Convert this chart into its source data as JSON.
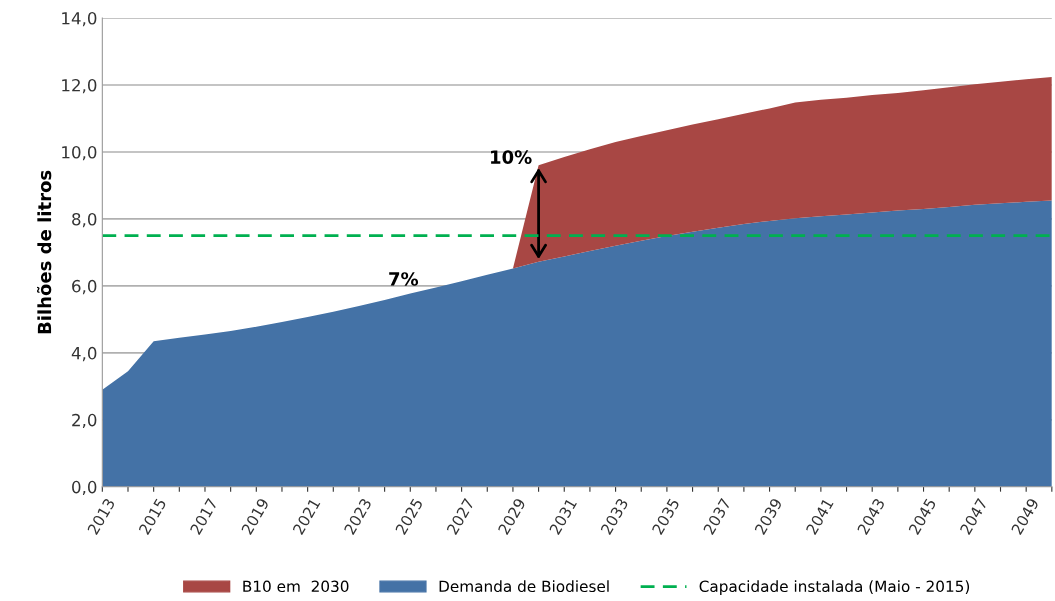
{
  "chart_data": {
    "type": "area",
    "stacked": true,
    "ylabel": "Bilhões de litros",
    "x": [
      2013,
      2014,
      2015,
      2016,
      2017,
      2018,
      2019,
      2020,
      2021,
      2022,
      2023,
      2024,
      2025,
      2026,
      2027,
      2028,
      2029,
      2030,
      2031,
      2032,
      2033,
      2034,
      2035,
      2036,
      2037,
      2038,
      2039,
      2040,
      2041,
      2042,
      2043,
      2044,
      2045,
      2046,
      2047,
      2048,
      2049,
      2050
    ],
    "series": [
      {
        "name": "Demanda de Biodiesel",
        "color": "#4472a6",
        "values": [
          2.9,
          3.45,
          4.35,
          4.45,
          4.55,
          4.65,
          4.78,
          4.92,
          5.07,
          5.23,
          5.4,
          5.58,
          5.77,
          5.95,
          6.14,
          6.33,
          6.52,
          6.72,
          6.88,
          7.04,
          7.2,
          7.35,
          7.49,
          7.62,
          7.74,
          7.85,
          7.94,
          8.02,
          8.08,
          8.13,
          8.19,
          8.25,
          8.3,
          8.36,
          8.42,
          8.47,
          8.51,
          8.55
        ]
      },
      {
        "name": "B10 em  2030",
        "color": "#a84744",
        "values": [
          null,
          null,
          null,
          null,
          null,
          null,
          null,
          null,
          null,
          null,
          null,
          null,
          null,
          null,
          null,
          null,
          0,
          2.88,
          2.97,
          3.04,
          3.1,
          3.13,
          3.16,
          3.2,
          3.24,
          3.29,
          3.36,
          3.46,
          3.48,
          3.49,
          3.51,
          3.51,
          3.54,
          3.57,
          3.6,
          3.63,
          3.66,
          3.69
        ]
      }
    ],
    "ref_lines": [
      {
        "axis": "y",
        "value": 7.5,
        "label": "Capacidade instalada (Maio - 2015)",
        "color": "#00b050",
        "line_style": "dashed"
      }
    ],
    "annotations": [
      "10%",
      "7%"
    ],
    "xlim": [
      2013,
      2050
    ],
    "xticks": [
      2013,
      {
        "value": 2014,
        "label": null
      },
      2015,
      {
        "value": 2016,
        "label": null
      },
      2017,
      {
        "value": 2018,
        "label": null
      },
      2019,
      {
        "value": 2020,
        "label": null
      },
      2021,
      {
        "value": 2022,
        "label": null
      },
      2023,
      {
        "value": 2024,
        "label": null
      },
      2025,
      {
        "value": 2026,
        "label": null
      },
      2027,
      {
        "value": 2028,
        "label": null
      },
      2029,
      {
        "value": 2030,
        "label": null
      },
      2031,
      {
        "value": 2032,
        "label": null
      },
      2033,
      {
        "value": 2034,
        "label": null
      },
      2035,
      {
        "value": 2036,
        "label": null
      },
      2037,
      {
        "value": 2038,
        "label": null
      },
      2039,
      {
        "value": 2040,
        "label": null
      },
      2041,
      {
        "value": 2042,
        "label": null
      },
      2043,
      {
        "value": 2044,
        "label": null
      },
      2045,
      {
        "value": 2046,
        "label": null
      },
      2047,
      {
        "value": 2048,
        "label": null
      },
      2049,
      {
        "value": 2050,
        "label": null
      }
    ],
    "ylim": [
      0,
      14
    ],
    "yticks": [
      {
        "value": 0,
        "label": "0,0"
      },
      {
        "value": 2,
        "label": "2,0"
      },
      {
        "value": 4,
        "label": "4,0"
      },
      {
        "value": 6,
        "label": "6,0"
      },
      {
        "value": 8,
        "label": "8,0"
      },
      {
        "value": 10,
        "label": "10,0"
      },
      {
        "value": 12,
        "label": "12,0"
      },
      {
        "value": 14,
        "label": "14,0"
      }
    ],
    "grid": "y",
    "legend": "bottom"
  }
}
